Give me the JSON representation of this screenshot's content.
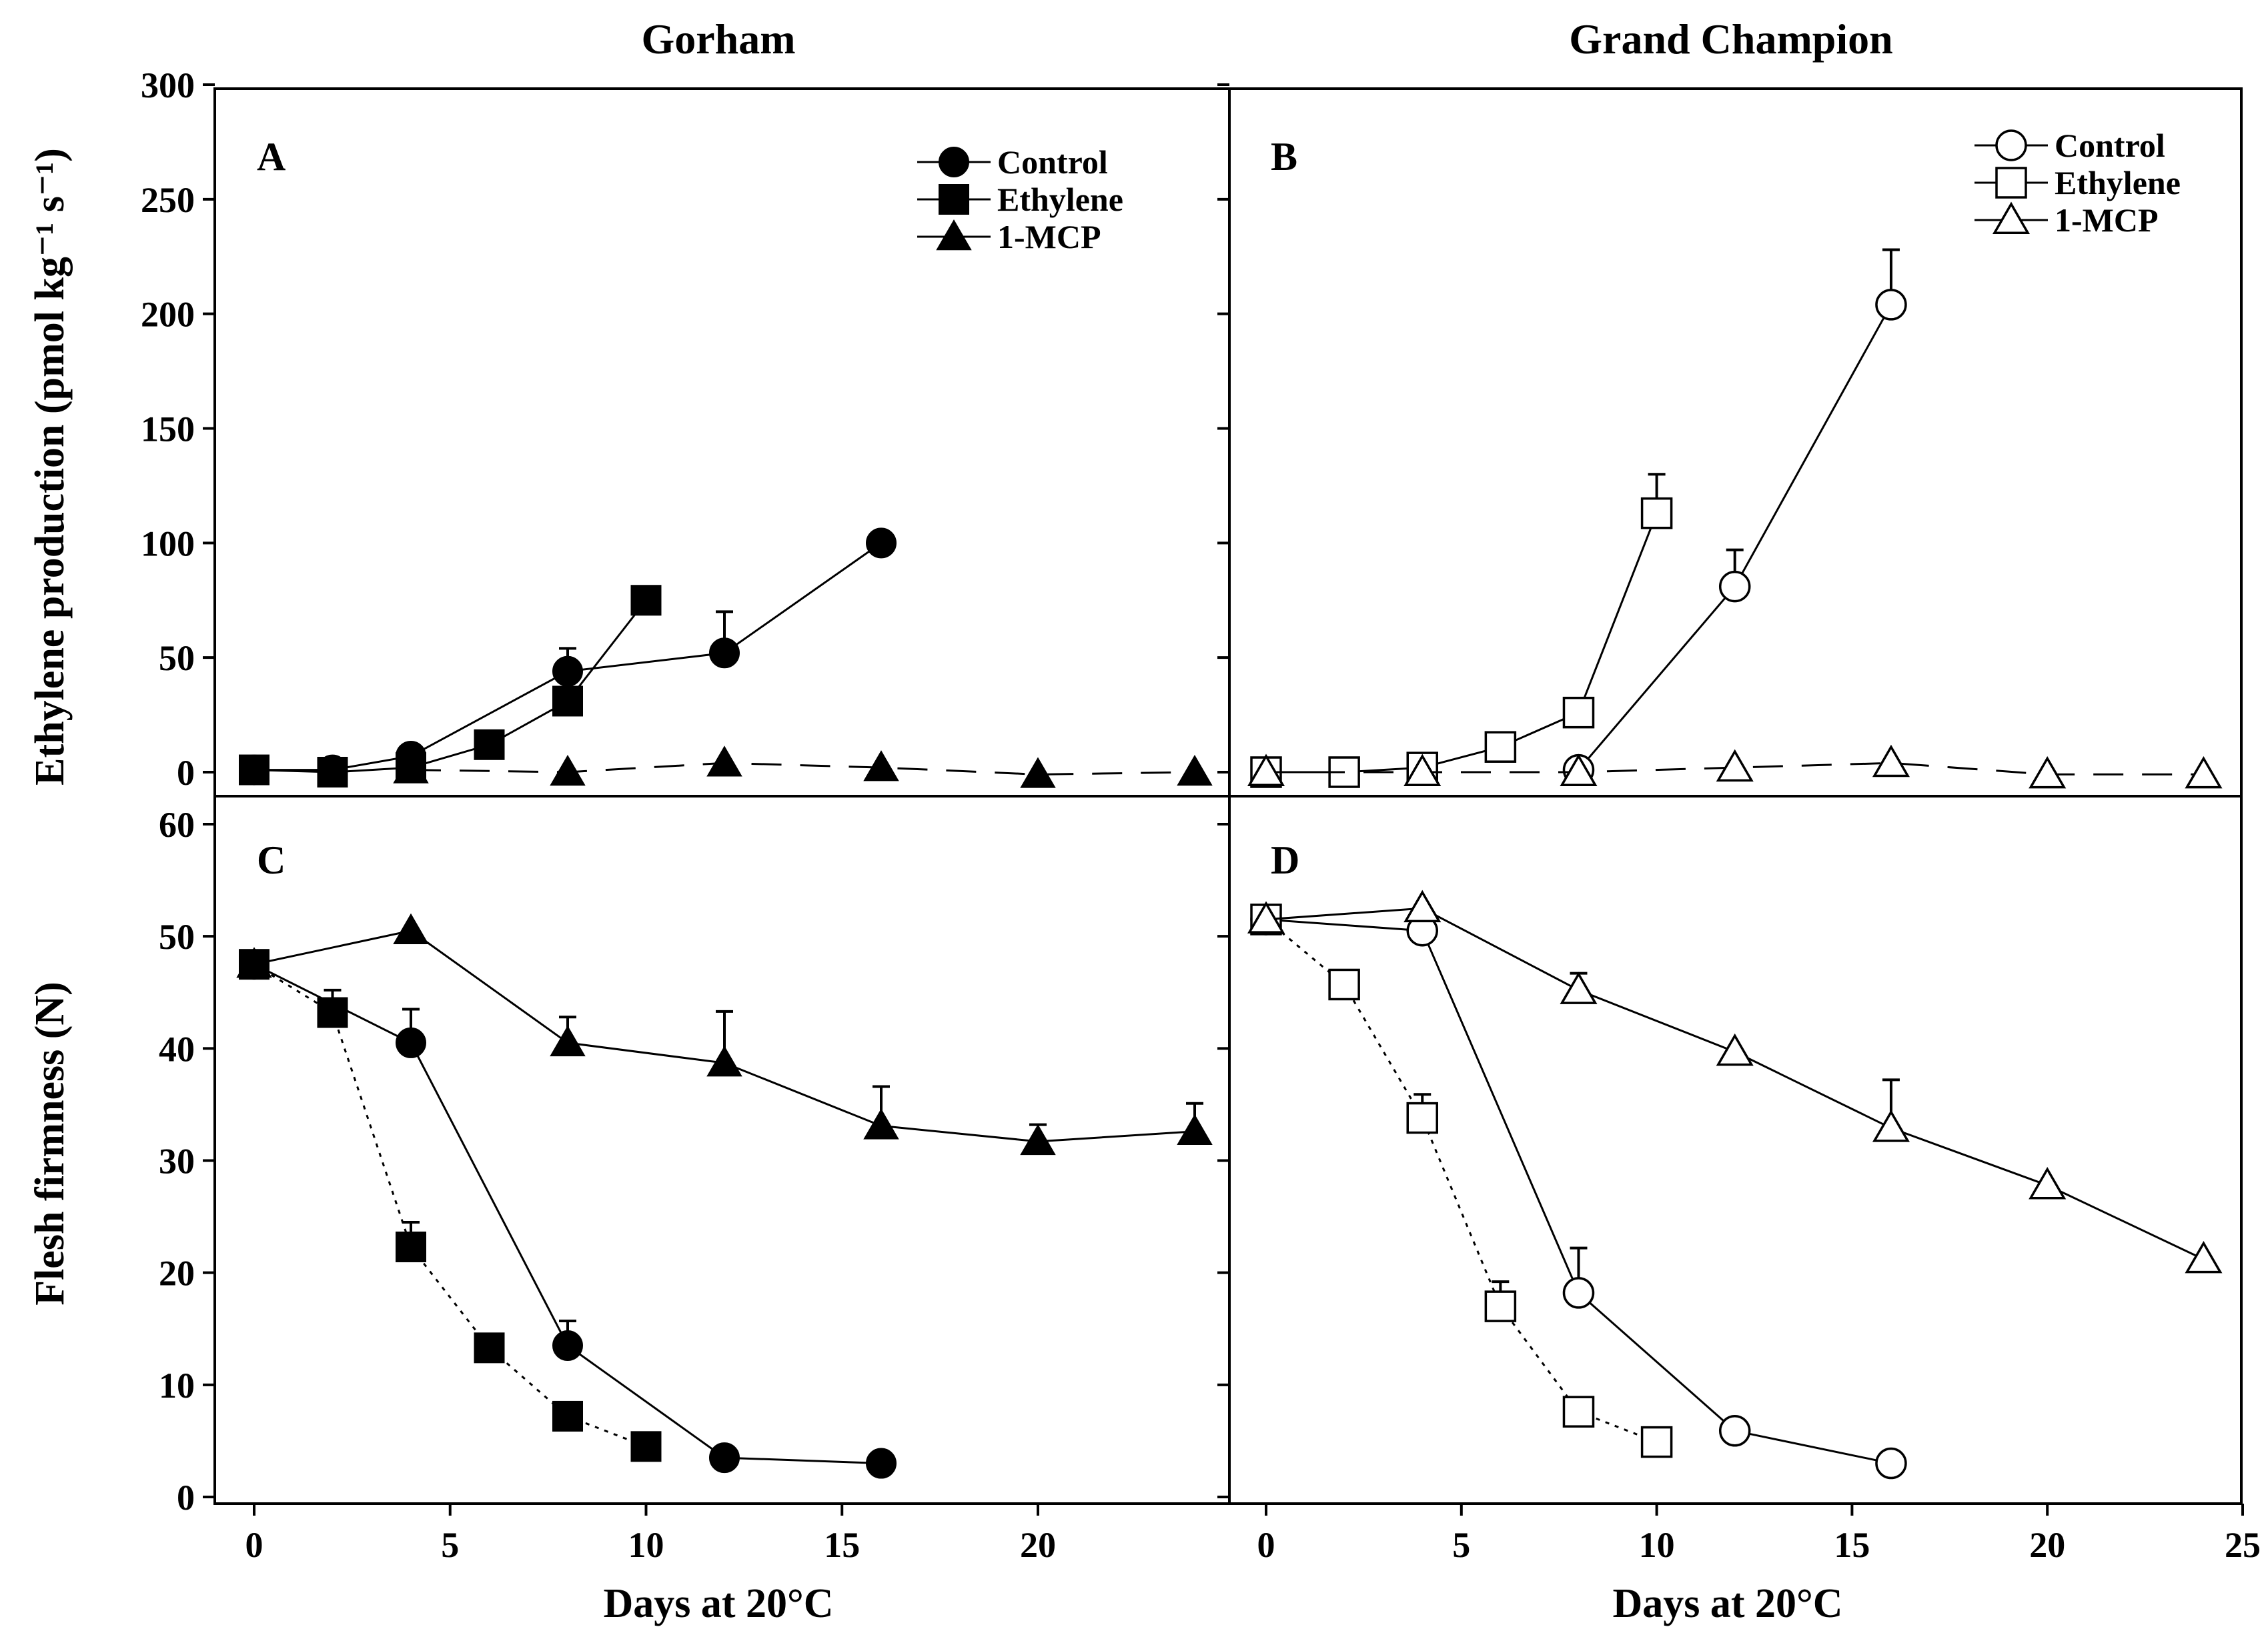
{
  "figure": {
    "column_titles": [
      "Gorham",
      "Grand Champion"
    ],
    "xlabel": "Days at 20°C",
    "ylabel_top": "Ethylene production (pmol kg⁻¹ s⁻¹)",
    "ylabel_bottom": "Flesh firmness (N)"
  },
  "chart_data": [
    {
      "panel": "A",
      "type": "line",
      "cultivar": "Gorham",
      "ylim": [
        0,
        300
      ],
      "yticks": [
        0,
        50,
        100,
        150,
        200,
        250,
        300
      ],
      "xlim": [
        -1,
        24.5
      ],
      "xticks": [],
      "legend": "top-right",
      "marker_fill": "filled",
      "series": [
        {
          "name": "Control",
          "marker": "circle",
          "dash": "solid",
          "x": [
            0,
            2,
            4,
            8,
            12,
            16
          ],
          "y": [
            1,
            1,
            7,
            44,
            52,
            100
          ],
          "err": [
            0,
            0,
            0,
            10,
            18,
            0
          ]
        },
        {
          "name": "Ethylene",
          "marker": "square",
          "dash": "solid",
          "x": [
            0,
            2,
            4,
            6,
            8,
            10
          ],
          "y": [
            1,
            0,
            2,
            12,
            31,
            75
          ],
          "err": [
            0,
            0,
            0,
            0,
            0,
            0
          ]
        },
        {
          "name": "1-MCP",
          "marker": "triangle",
          "dash": "longdash",
          "x": [
            4,
            8,
            12,
            16,
            20,
            24
          ],
          "y": [
            1,
            0,
            4,
            2,
            -1,
            0
          ],
          "err": [
            0,
            0,
            0,
            0,
            0,
            0
          ]
        }
      ]
    },
    {
      "panel": "B",
      "type": "line",
      "cultivar": "Grand Champion",
      "ylim": [
        0,
        300
      ],
      "yticks": [],
      "xlim": [
        -0.5,
        25
      ],
      "xticks": [],
      "legend": "top-right",
      "marker_fill": "open",
      "series": [
        {
          "name": "Control",
          "marker": "circle",
          "dash": "solid",
          "x": [
            8,
            12,
            16
          ],
          "y": [
            1,
            81,
            204
          ],
          "err": [
            0,
            16,
            24
          ]
        },
        {
          "name": "Ethylene",
          "marker": "square",
          "dash": "solid",
          "x": [
            0,
            2,
            4,
            6,
            8,
            10
          ],
          "y": [
            0,
            0,
            2,
            11,
            26,
            113
          ],
          "err": [
            0,
            0,
            0,
            0,
            0,
            17
          ]
        },
        {
          "name": "1-MCP",
          "marker": "triangle",
          "dash": "longdash",
          "x": [
            0,
            4,
            8,
            12,
            16,
            20,
            24
          ],
          "y": [
            0,
            0,
            0,
            2,
            4,
            -1,
            -1
          ],
          "err": [
            0,
            0,
            0,
            0,
            0,
            0,
            0
          ]
        }
      ]
    },
    {
      "panel": "C",
      "type": "line",
      "cultivar": "Gorham",
      "ylim": [
        0,
        60
      ],
      "yticks": [
        0,
        10,
        20,
        30,
        40,
        50,
        60
      ],
      "xlim": [
        -1,
        24.5
      ],
      "xticks": [
        0,
        5,
        10,
        15,
        20
      ],
      "marker_fill": "filled",
      "series": [
        {
          "name": "Control",
          "marker": "circle",
          "dash": "solid",
          "x": [
            0,
            4,
            8,
            12,
            16
          ],
          "y": [
            47.5,
            40.5,
            13.5,
            3.5,
            3
          ],
          "err": [
            0,
            3,
            2.2,
            0,
            0
          ]
        },
        {
          "name": "Ethylene",
          "marker": "square",
          "dash": "dotted",
          "x": [
            0,
            2,
            4,
            6,
            8,
            10
          ],
          "y": [
            47.5,
            43.2,
            22.3,
            13.3,
            7.2,
            4.5
          ],
          "err": [
            0,
            2,
            2.2,
            0,
            0,
            0
          ]
        },
        {
          "name": "1-MCP",
          "marker": "triangle",
          "dash": "solid",
          "x": [
            0,
            4,
            8,
            12,
            16,
            20,
            24
          ],
          "y": [
            47.5,
            50.5,
            40.5,
            38.7,
            33.1,
            31.7,
            32.6
          ],
          "err": [
            0,
            0,
            2.3,
            4.6,
            3.5,
            1.5,
            2.5
          ]
        }
      ]
    },
    {
      "panel": "D",
      "type": "line",
      "cultivar": "Grand Champion",
      "ylim": [
        0,
        60
      ],
      "yticks": [],
      "xlim": [
        -0.5,
        25
      ],
      "xticks": [
        0,
        5,
        10,
        15,
        20,
        25
      ],
      "marker_fill": "open",
      "series": [
        {
          "name": "Control",
          "marker": "circle",
          "dash": "solid",
          "x": [
            0,
            4,
            8,
            12,
            16
          ],
          "y": [
            51.5,
            50.5,
            18.2,
            5.9,
            3
          ],
          "err": [
            0,
            0,
            4,
            0,
            0
          ]
        },
        {
          "name": "Ethylene",
          "marker": "square",
          "dash": "dotted",
          "x": [
            0,
            2,
            4,
            6,
            8,
            10
          ],
          "y": [
            51.5,
            45.7,
            33.8,
            17,
            7.6,
            4.9
          ],
          "err": [
            0,
            0,
            2.1,
            2.2,
            0,
            0
          ]
        },
        {
          "name": "1-MCP",
          "marker": "triangle",
          "dash": "solid",
          "x": [
            0,
            4,
            8,
            12,
            16,
            20,
            24
          ],
          "y": [
            51.5,
            52.5,
            45.2,
            39.7,
            32.9,
            27.8,
            21.2
          ],
          "err": [
            0,
            0,
            1.5,
            0,
            4.3,
            0,
            0
          ]
        }
      ]
    }
  ]
}
